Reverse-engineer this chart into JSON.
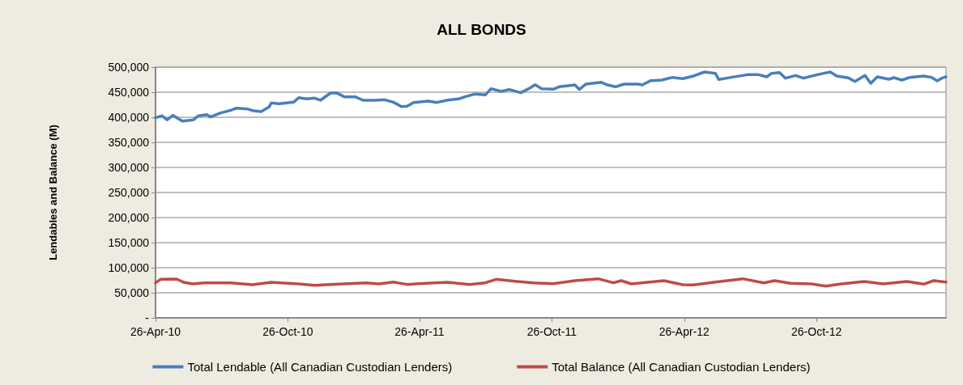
{
  "chart_data": {
    "type": "line",
    "title": "ALL BONDS",
    "ylabel": "Lendables and Balance (M)",
    "xlim": [
      "2010-04-26",
      "2013-04-23"
    ],
    "xticks": [
      {
        "value": "2010-04-26",
        "label": "26-Apr-10"
      },
      {
        "value": "2010-10-26",
        "label": "26-Oct-10"
      },
      {
        "value": "2011-04-26",
        "label": "26-Apr-11"
      },
      {
        "value": "2011-10-26",
        "label": "26-Oct-11"
      },
      {
        "value": "2012-04-26",
        "label": "26-Apr-12"
      },
      {
        "value": "2012-10-26",
        "label": "26-Oct-12"
      }
    ],
    "ylim": [
      0,
      500000
    ],
    "yticks": [
      {
        "value": 0,
        "label": "-"
      },
      {
        "value": 50000,
        "label": "50,000"
      },
      {
        "value": 100000,
        "label": "100,000"
      },
      {
        "value": 150000,
        "label": "150,000"
      },
      {
        "value": 200000,
        "label": "200,000"
      },
      {
        "value": 250000,
        "label": "250,000"
      },
      {
        "value": 300000,
        "label": "300,000"
      },
      {
        "value": 350000,
        "label": "350,000"
      },
      {
        "value": 400000,
        "label": "400,000"
      },
      {
        "value": 450000,
        "label": "450,000"
      },
      {
        "value": 500000,
        "label": "500,000"
      }
    ],
    "grid": "y",
    "legend": "bottom",
    "marker": "none",
    "line_style": "solid",
    "series": [
      {
        "name": "Total Lendable (All Canadian Custodian Lenders)",
        "color": "#4a7ebb",
        "x": [
          "2010-04-26",
          "2010-05-05",
          "2010-05-12",
          "2010-05-20",
          "2010-06-02",
          "2010-06-17",
          "2010-06-24",
          "2010-07-06",
          "2010-07-11",
          "2010-07-25",
          "2010-08-08",
          "2010-08-16",
          "2010-08-31",
          "2010-09-07",
          "2010-09-19",
          "2010-09-30",
          "2010-10-03",
          "2010-10-14",
          "2010-11-03",
          "2010-11-10",
          "2010-11-21",
          "2010-12-02",
          "2010-12-10",
          "2010-12-24",
          "2011-01-01",
          "2011-01-12",
          "2011-01-27",
          "2011-02-07",
          "2011-02-23",
          "2011-03-09",
          "2011-03-21",
          "2011-04-01",
          "2011-04-09",
          "2011-04-18",
          "2011-05-08",
          "2011-05-20",
          "2011-06-04",
          "2011-06-19",
          "2011-06-28",
          "2011-07-11",
          "2011-07-26",
          "2011-08-03",
          "2011-08-17",
          "2011-08-28",
          "2011-09-13",
          "2011-09-24",
          "2011-10-03",
          "2011-10-12",
          "2011-10-28",
          "2011-11-05",
          "2011-11-27",
          "2011-12-03",
          "2011-12-12",
          "2012-01-02",
          "2012-01-11",
          "2012-01-22",
          "2012-02-03",
          "2012-02-22",
          "2012-02-28",
          "2012-03-11",
          "2012-03-26",
          "2012-04-10",
          "2012-04-24",
          "2012-05-09",
          "2012-05-24",
          "2012-06-08",
          "2012-06-13",
          "2012-06-30",
          "2012-07-22",
          "2012-08-07",
          "2012-08-18",
          "2012-08-25",
          "2012-09-05",
          "2012-09-13",
          "2012-09-27",
          "2012-10-08",
          "2012-10-24",
          "2012-11-05",
          "2012-11-14",
          "2012-11-23",
          "2012-12-09",
          "2012-12-18",
          "2013-01-01",
          "2013-01-09",
          "2013-01-18",
          "2013-02-03",
          "2013-02-10",
          "2013-02-21",
          "2013-03-04",
          "2013-03-23",
          "2013-04-03",
          "2013-04-11",
          "2013-04-18",
          "2013-04-23"
        ],
        "values": [
          399000,
          403000,
          395000,
          404000,
          392500,
          394600,
          402700,
          405400,
          400500,
          408600,
          414000,
          418300,
          416700,
          413400,
          411300,
          420400,
          428500,
          426900,
          430100,
          439200,
          436600,
          438200,
          433900,
          448400,
          448900,
          440900,
          440900,
          433900,
          433900,
          434900,
          430100,
          421500,
          422000,
          429600,
          432300,
          429600,
          434400,
          436600,
          440900,
          446200,
          444600,
          457000,
          451600,
          455400,
          448900,
          457000,
          465000,
          457000,
          456000,
          460800,
          464500,
          455400,
          466100,
          469900,
          464500,
          460800,
          466100,
          466100,
          464500,
          473100,
          474200,
          479600,
          476900,
          482300,
          490300,
          487700,
          475300,
          479600,
          484900,
          484900,
          480600,
          487700,
          489200,
          478000,
          483300,
          478000,
          483900,
          487700,
          490300,
          482300,
          478500,
          471500,
          483300,
          467700,
          480600,
          475800,
          479000,
          474200,
          479600,
          482300,
          479600,
          472600,
          478500,
          480600
        ]
      },
      {
        "name": "Total Balance (All Canadian Custodian Lenders)",
        "color": "#be4b48",
        "x": [
          "2010-04-26",
          "2010-05-03",
          "2010-05-25",
          "2010-06-05",
          "2010-06-17",
          "2010-07-02",
          "2010-08-08",
          "2010-09-07",
          "2010-10-03",
          "2010-11-10",
          "2010-12-02",
          "2011-01-04",
          "2011-02-11",
          "2011-03-01",
          "2011-03-21",
          "2011-04-09",
          "2011-05-16",
          "2011-06-04",
          "2011-07-04",
          "2011-07-26",
          "2011-08-10",
          "2011-09-05",
          "2011-10-01",
          "2011-10-28",
          "2011-11-27",
          "2011-12-29",
          "2012-01-19",
          "2012-01-30",
          "2012-02-13",
          "2012-03-29",
          "2012-04-24",
          "2012-05-09",
          "2012-06-08",
          "2012-07-16",
          "2012-08-14",
          "2012-08-29",
          "2012-09-20",
          "2012-10-19",
          "2012-11-08",
          "2012-11-27",
          "2012-12-31",
          "2013-01-26",
          "2013-02-28",
          "2013-03-23",
          "2013-04-06",
          "2013-04-23"
        ],
        "values": [
          69900,
          76900,
          77400,
          70400,
          67700,
          69900,
          69900,
          66100,
          71000,
          67700,
          65100,
          67200,
          69900,
          67700,
          71500,
          66700,
          69900,
          71000,
          66700,
          69900,
          76900,
          73100,
          69900,
          68000,
          74200,
          78000,
          69900,
          74200,
          67700,
          74200,
          66100,
          65600,
          71500,
          78000,
          69900,
          74200,
          68800,
          67700,
          63400,
          67200,
          72600,
          67700,
          72600,
          67200,
          74200,
          71500
        ]
      }
    ]
  }
}
